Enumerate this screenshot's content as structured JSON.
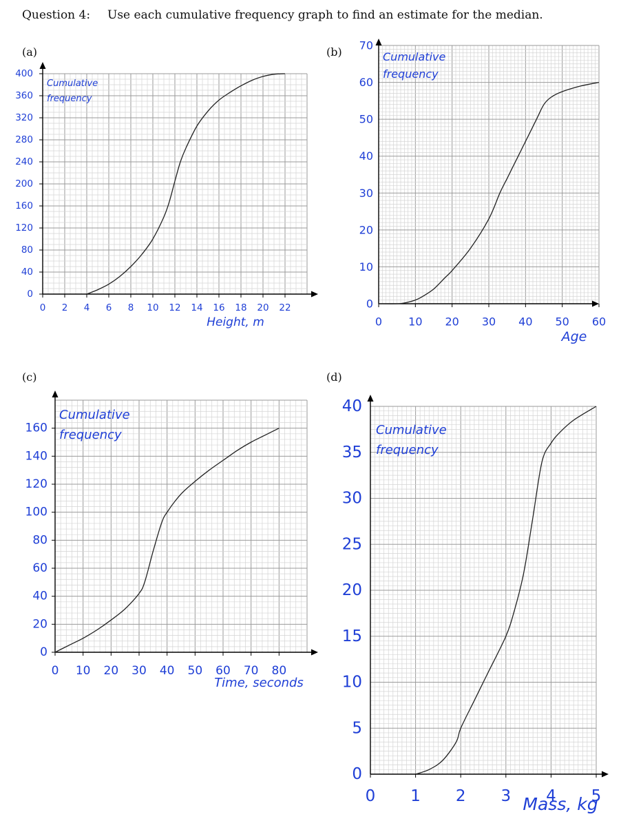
{
  "question": {
    "number": "Question 4:",
    "text": "Use each cumulative frequency graph to find an estimate for the median."
  },
  "colors": {
    "axis_text": "#1f3fd6",
    "grid_minor": "#d4d4d4",
    "grid_major": "#9a9a9a",
    "curve": "#222222"
  },
  "chart_data": [
    {
      "label": "(a)",
      "type": "line",
      "title": "",
      "ylabel": "Cumulative frequency",
      "xlabel": "Height, m",
      "xlim": [
        0,
        24
      ],
      "ylim": [
        0,
        400
      ],
      "xticks": [
        0,
        2,
        4,
        6,
        8,
        10,
        12,
        14,
        16,
        18,
        20,
        22
      ],
      "yticks": [
        0,
        40,
        80,
        120,
        160,
        200,
        240,
        280,
        320,
        360,
        400
      ],
      "series": [
        {
          "name": "cumulative frequency",
          "x": [
            4,
            5,
            6,
            7,
            8,
            9,
            10,
            11,
            11.5,
            12,
            12.5,
            13,
            14,
            15,
            16,
            17,
            18,
            19,
            20,
            21,
            22
          ],
          "y": [
            0,
            8,
            18,
            32,
            50,
            72,
            100,
            140,
            168,
            205,
            240,
            265,
            305,
            332,
            352,
            366,
            378,
            388,
            395,
            399,
            400
          ]
        }
      ]
    },
    {
      "label": "(b)",
      "type": "line",
      "title": "",
      "ylabel": "Cumulative frequency",
      "xlabel": "Age",
      "xlim": [
        0,
        60
      ],
      "ylim": [
        0,
        70
      ],
      "xticks": [
        0,
        10,
        20,
        30,
        40,
        50,
        60
      ],
      "yticks": [
        0,
        10,
        20,
        30,
        40,
        50,
        60,
        70
      ],
      "series": [
        {
          "name": "cumulative frequency",
          "x": [
            0,
            5,
            7,
            10,
            12,
            15,
            18,
            20,
            25,
            30,
            33,
            35,
            38,
            40,
            43,
            45,
            47,
            50,
            55,
            60
          ],
          "y": [
            0,
            0,
            0.2,
            1,
            2,
            4,
            7,
            9,
            15,
            23,
            30,
            34,
            40,
            44,
            50,
            54,
            56,
            57.5,
            59,
            60
          ]
        }
      ]
    },
    {
      "label": "(c)",
      "type": "line",
      "title": "",
      "ylabel": "Cumulative frequency",
      "xlabel": "Time, seconds",
      "xlim": [
        0,
        90
      ],
      "ylim": [
        0,
        180
      ],
      "xticks": [
        0,
        10,
        20,
        30,
        40,
        50,
        60,
        70,
        80
      ],
      "yticks": [
        0,
        20,
        40,
        60,
        80,
        100,
        120,
        140,
        160
      ],
      "series": [
        {
          "name": "cumulative frequency",
          "x": [
            0,
            5,
            10,
            15,
            20,
            25,
            30,
            32,
            35,
            38,
            40,
            45,
            50,
            55,
            60,
            65,
            70,
            75,
            80
          ],
          "y": [
            0,
            5,
            10,
            16,
            23,
            31,
            42,
            50,
            72,
            92,
            100,
            113,
            122,
            130,
            137,
            144,
            150,
            155,
            160
          ]
        }
      ]
    },
    {
      "label": "(d)",
      "type": "line",
      "title": "",
      "ylabel": "Cumulative frequency",
      "xlabel": "Mass, kg",
      "xlim": [
        0,
        5
      ],
      "ylim": [
        0,
        40
      ],
      "xticks": [
        0,
        1,
        2,
        3,
        4,
        5
      ],
      "yticks": [
        0,
        5,
        10,
        15,
        20,
        25,
        30,
        35,
        40
      ],
      "series": [
        {
          "name": "cumulative frequency",
          "x": [
            1,
            1.3,
            1.6,
            1.9,
            2,
            2.3,
            2.6,
            3,
            3.2,
            3.4,
            3.6,
            3.8,
            4,
            4.2,
            4.5,
            5
          ],
          "y": [
            0,
            0.5,
            1.5,
            3.5,
            5,
            8,
            11,
            15,
            18,
            22,
            28,
            34,
            36,
            37.2,
            38.5,
            40
          ]
        }
      ]
    }
  ]
}
